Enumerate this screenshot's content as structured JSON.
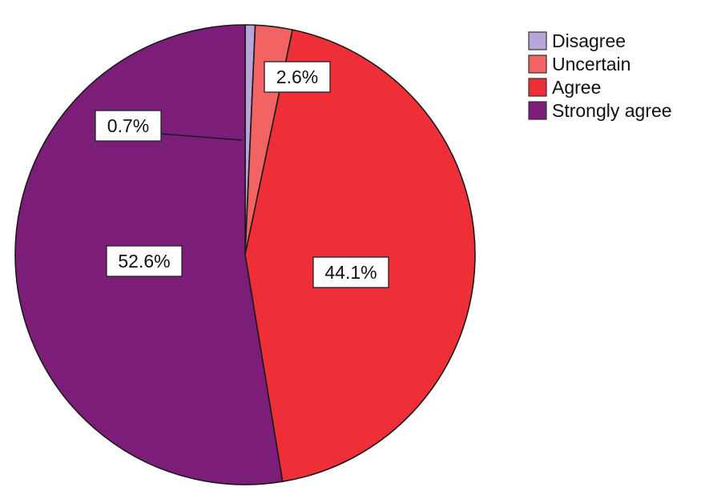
{
  "chart_data": {
    "type": "pie",
    "categories": [
      "Disagree",
      "Uncertain",
      "Agree",
      "Strongly agree"
    ],
    "values": [
      0.7,
      2.6,
      44.1,
      52.6
    ],
    "labels": [
      "0.7%",
      "2.6%",
      "44.1%",
      "52.6%"
    ],
    "colors": [
      "#b9a6d8",
      "#f26464",
      "#ee2f37",
      "#7c1d7a"
    ],
    "start_angle": "12 o'clock",
    "direction": "clockwise",
    "legend": {
      "position": "top-right",
      "entries": [
        "Disagree",
        "Uncertain",
        "Agree",
        "Strongly agree"
      ]
    }
  }
}
